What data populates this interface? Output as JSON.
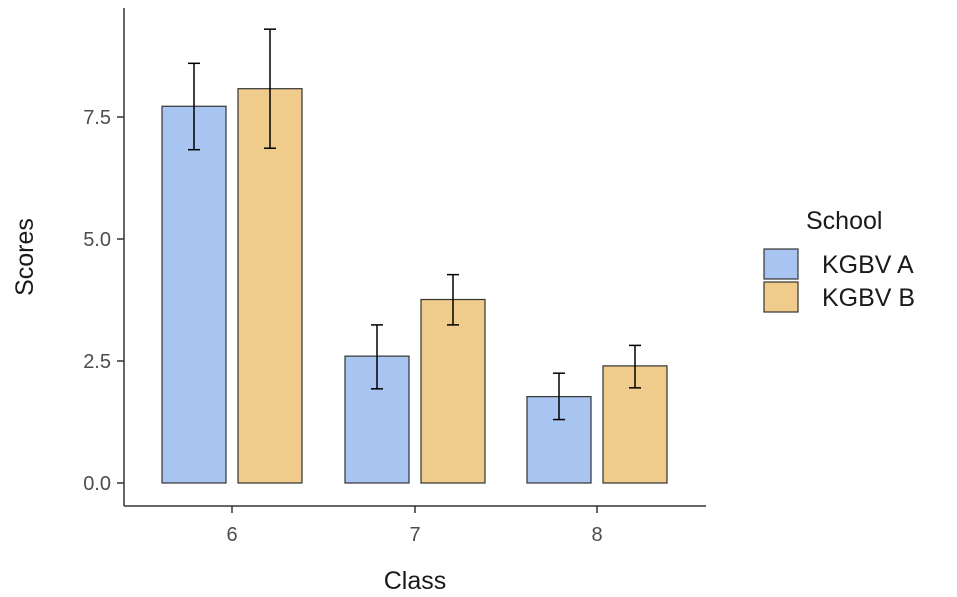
{
  "chart_data": {
    "type": "bar",
    "xlabel": "Class",
    "ylabel": "Scores",
    "categories": [
      "6",
      "7",
      "8"
    ],
    "ylim": [
      0,
      9.6
    ],
    "yticks": [
      "0.0",
      "2.5",
      "5.0",
      "7.5"
    ],
    "ytick_values": [
      0,
      2.5,
      5.0,
      7.5
    ],
    "grid": false,
    "legend": {
      "title": "School",
      "placement": "right"
    },
    "series": [
      {
        "name": "KGBV A",
        "color": "#a8c4f0",
        "values": [
          7.72,
          2.6,
          1.77
        ],
        "error_low": [
          6.83,
          1.93,
          1.3
        ],
        "error_high": [
          8.6,
          3.24,
          2.25
        ]
      },
      {
        "name": "KGBV B",
        "color": "#f0cc8c",
        "values": [
          8.08,
          3.76,
          2.4
        ],
        "error_low": [
          6.86,
          3.24,
          1.95
        ],
        "error_high": [
          9.3,
          4.27,
          2.82
        ]
      }
    ]
  }
}
